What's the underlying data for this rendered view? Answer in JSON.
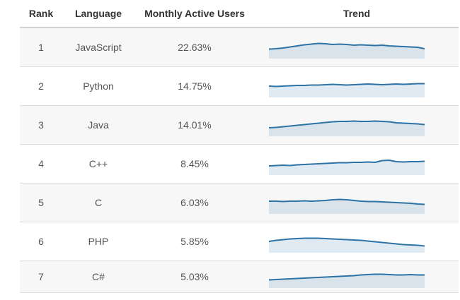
{
  "header": {
    "rank": "Rank",
    "language": "Language",
    "users": "Monthly Active Users",
    "trend": "Trend"
  },
  "rows": [
    {
      "rank": "1",
      "language": "JavaScript",
      "users": "22.63%"
    },
    {
      "rank": "2",
      "language": "Python",
      "users": "14.75%"
    },
    {
      "rank": "3",
      "language": "Java",
      "users": "14.01%"
    },
    {
      "rank": "4",
      "language": "C++",
      "users": "8.45%"
    },
    {
      "rank": "5",
      "language": "C",
      "users": "6.03%"
    },
    {
      "rank": "6",
      "language": "PHP",
      "users": "5.85%"
    },
    {
      "rank": "7",
      "language": "C#",
      "users": "5.03%"
    }
  ],
  "chart_data": {
    "type": "table",
    "columns": [
      "Rank",
      "Language",
      "Monthly Active Users",
      "Trend"
    ],
    "rows": [
      [
        "1",
        "JavaScript",
        "22.63%"
      ],
      [
        "2",
        "Python",
        "14.75%"
      ],
      [
        "3",
        "Java",
        "14.01%"
      ],
      [
        "4",
        "C++",
        "8.45%"
      ],
      [
        "5",
        "C",
        "6.03%"
      ],
      [
        "6",
        "PHP",
        "5.85%"
      ],
      [
        "7",
        "C#",
        "5.03%"
      ]
    ],
    "sparklines": [
      {
        "name": "JavaScript",
        "type": "area",
        "values": [
          13.5,
          14,
          15,
          16.5,
          18,
          19.5,
          20.5,
          21.5,
          21,
          20,
          20.5,
          20,
          19,
          19.5,
          19,
          18.5,
          19,
          18,
          17.5,
          17,
          16.5,
          16,
          14
        ]
      },
      {
        "name": "Python",
        "type": "area",
        "values": [
          16,
          15.5,
          16,
          16.5,
          17,
          17,
          17.5,
          17.5,
          18,
          18.5,
          18,
          17.5,
          18,
          18.5,
          19,
          18.5,
          18,
          18.5,
          19,
          18.5,
          19,
          19.5,
          19.5
        ]
      },
      {
        "name": "Java",
        "type": "area",
        "values": [
          12,
          12.5,
          13.5,
          14.5,
          15.5,
          16.5,
          17.5,
          18.5,
          19.5,
          20.5,
          21,
          21,
          21.5,
          21,
          21,
          21.5,
          21,
          20.5,
          19,
          18.5,
          18,
          17.5,
          16.5
        ]
      },
      {
        "name": "C++",
        "type": "area",
        "values": [
          13,
          13.5,
          14,
          13.5,
          14.5,
          15,
          15.5,
          16,
          16.5,
          17,
          17.5,
          17.5,
          18,
          18,
          18.5,
          18,
          20.5,
          21,
          19,
          18.5,
          19,
          19,
          19.5
        ]
      },
      {
        "name": "C",
        "type": "area",
        "values": [
          18,
          18,
          17.5,
          18,
          18,
          18.5,
          18,
          18.5,
          19,
          20,
          20.5,
          20,
          19,
          18,
          17.5,
          17.5,
          17,
          16.5,
          16,
          15.5,
          15,
          14,
          13.5
        ]
      },
      {
        "name": "PHP",
        "type": "area",
        "values": [
          16,
          17.5,
          18.5,
          19.5,
          20,
          20.5,
          20.5,
          20.5,
          20,
          19.5,
          19,
          18.5,
          18,
          17.5,
          16.5,
          15.5,
          14.5,
          13.5,
          12.5,
          11.5,
          11,
          10.5,
          9.5
        ]
      },
      {
        "name": "C#",
        "type": "area",
        "values": [
          11.5,
          12,
          12.5,
          13,
          13.5,
          14,
          14.5,
          15,
          15.5,
          16,
          16.5,
          17,
          17.5,
          18.5,
          19,
          19.5,
          19.5,
          19,
          18.5,
          18.5,
          19,
          18.5,
          18.5
        ]
      }
    ]
  },
  "colors": {
    "spark_line": "#2d73a5",
    "spark_fill": "rgba(45,115,165,0.15)",
    "row_alt_bg": "#f7f7f7",
    "row_border": "#dddddd",
    "header_border": "#d2d2d2",
    "header_text": "#333333",
    "body_text": "#555555"
  }
}
